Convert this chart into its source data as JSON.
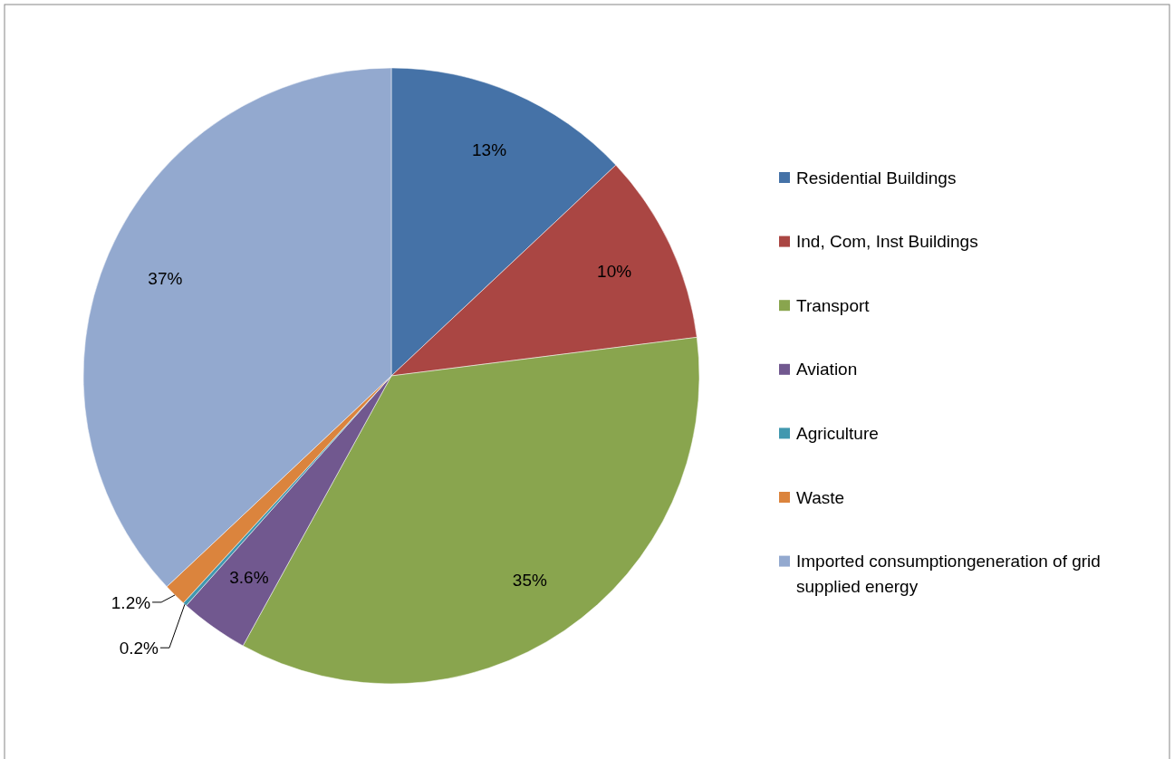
{
  "chart_data": {
    "type": "pie",
    "categories": [
      "Residential Buildings",
      "Ind, Com, Inst Buildings",
      "Transport",
      "Aviation",
      "Agriculture",
      "Waste",
      "Imported consumptiongeneration of grid supplied energy"
    ],
    "values": [
      13,
      10,
      35,
      3.6,
      0.2,
      1.2,
      37
    ],
    "colors": [
      "#4572a7",
      "#aa4643",
      "#89a54e",
      "#71588f",
      "#4198af",
      "#db843d",
      "#93a9cf"
    ],
    "value_labels": [
      "13%",
      "10%",
      "35%",
      "3.6%",
      "0.2%",
      "1.2%",
      "37%"
    ],
    "legend": "right"
  }
}
